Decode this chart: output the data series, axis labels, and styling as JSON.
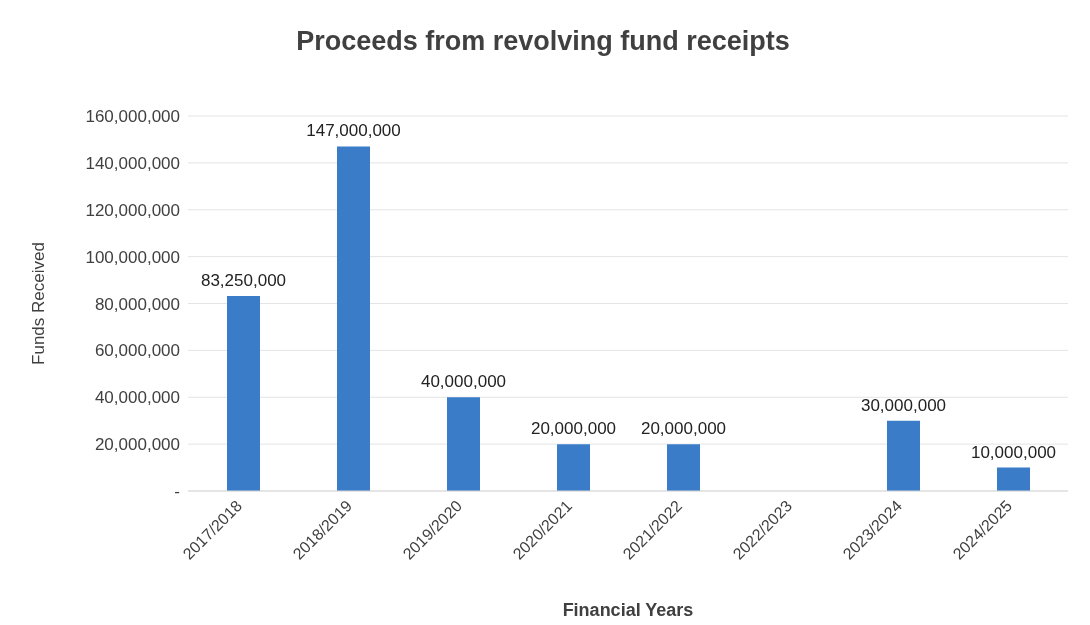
{
  "chart_data": {
    "type": "bar",
    "title": "Proceeds from revolving fund receipts",
    "xlabel": "Financial Years",
    "ylabel": "Funds Received",
    "categories": [
      "2017/2018",
      "2018/2019",
      "2019/2020",
      "2020/2021",
      "2021/2022",
      "2022/2023",
      "2023/2024",
      "2024/2025"
    ],
    "values": [
      83250000,
      147000000,
      40000000,
      20000000,
      20000000,
      null,
      30000000,
      10000000
    ],
    "value_labels": [
      "83,250,000",
      "147,000,000",
      "40,000,000",
      "20,000,000",
      "20,000,000",
      null,
      "30,000,000",
      "10,000,000"
    ],
    "color": "#3a7cc8",
    "ylim": [
      0,
      160000000
    ],
    "yticks": [
      {
        "value": 0,
        "label": "-"
      },
      {
        "value": 20000000,
        "label": "20,000,000"
      },
      {
        "value": 40000000,
        "label": "40,000,000"
      },
      {
        "value": 60000000,
        "label": "60,000,000"
      },
      {
        "value": 80000000,
        "label": "80,000,000"
      },
      {
        "value": 100000000,
        "label": "100,000,000"
      },
      {
        "value": 120000000,
        "label": "120,000,000"
      },
      {
        "value": 140000000,
        "label": "140,000,000"
      },
      {
        "value": 160000000,
        "label": "160,000,000"
      }
    ],
    "grid": "y"
  }
}
